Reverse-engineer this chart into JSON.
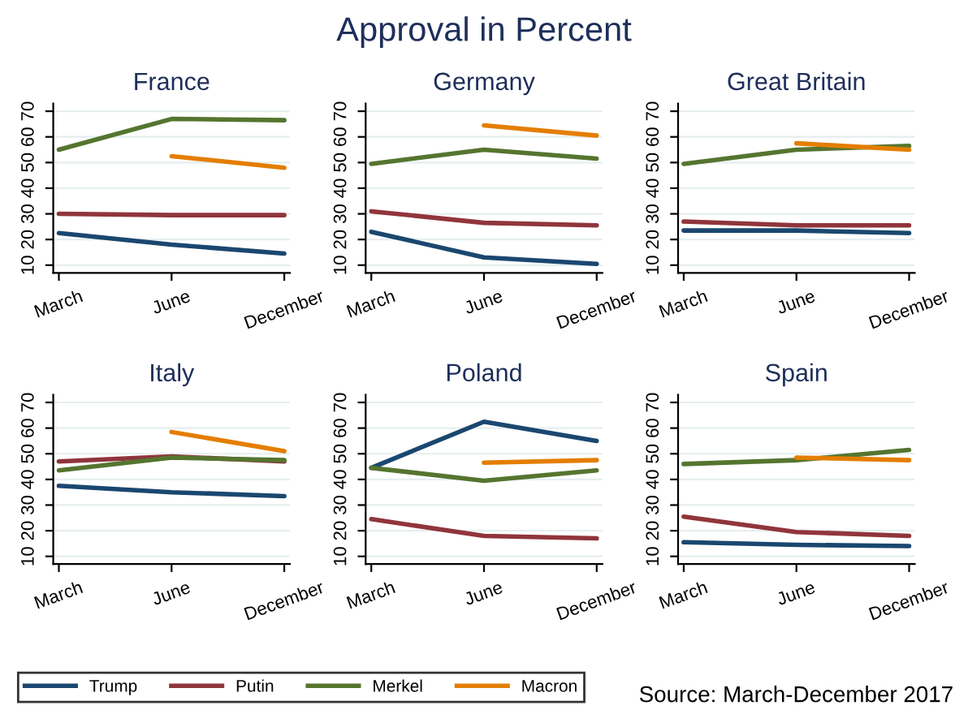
{
  "chart_data": [
    {
      "type": "line",
      "title": "France",
      "annotations": [
        "Approval in Percent"
      ],
      "categories": [
        "March",
        "June",
        "December"
      ],
      "ylim": [
        7,
        73
      ],
      "yticks": [
        10,
        20,
        30,
        40,
        50,
        60,
        70
      ],
      "grid": "y",
      "legend": "bottom",
      "series": [
        {
          "name": "Trump",
          "color": "#1a476f",
          "values": [
            22.5,
            18,
            14.5
          ]
        },
        {
          "name": "Putin",
          "color": "#90353b",
          "values": [
            30,
            29.5,
            29.5
          ]
        },
        {
          "name": "Merkel",
          "color": "#55752f",
          "values": [
            55,
            67,
            66.5
          ]
        },
        {
          "name": "Macron",
          "color": "#e37e00",
          "values": [
            null,
            52.5,
            48
          ]
        }
      ]
    },
    {
      "type": "line",
      "title": "Germany",
      "categories": [
        "March",
        "June",
        "December"
      ],
      "ylim": [
        7,
        73
      ],
      "yticks": [
        10,
        20,
        30,
        40,
        50,
        60,
        70
      ],
      "grid": "y",
      "series": [
        {
          "color": "#1a476f",
          "values": [
            23,
            13,
            10.5
          ]
        },
        {
          "color": "#90353b",
          "values": [
            31,
            26.5,
            25.5
          ]
        },
        {
          "color": "#55752f",
          "values": [
            49.5,
            55,
            51.5
          ]
        },
        {
          "color": "#e37e00",
          "values": [
            null,
            64.5,
            60.5
          ]
        }
      ]
    },
    {
      "type": "line",
      "title": "Great Britain",
      "categories": [
        "March",
        "June",
        "December"
      ],
      "ylim": [
        7,
        73
      ],
      "yticks": [
        10,
        20,
        30,
        40,
        50,
        60,
        70
      ],
      "grid": "y",
      "series": [
        {
          "color": "#1a476f",
          "values": [
            23.5,
            23.5,
            22.5
          ]
        },
        {
          "color": "#90353b",
          "values": [
            27,
            25.5,
            25.5
          ]
        },
        {
          "color": "#55752f",
          "values": [
            49.5,
            55,
            56.5
          ]
        },
        {
          "color": "#e37e00",
          "values": [
            null,
            57.5,
            55
          ]
        }
      ]
    },
    {
      "type": "line",
      "title": "Italy",
      "categories": [
        "March",
        "June",
        "December"
      ],
      "ylim": [
        7,
        73
      ],
      "yticks": [
        10,
        20,
        30,
        40,
        50,
        60,
        70
      ],
      "grid": "y",
      "series": [
        {
          "color": "#1a476f",
          "values": [
            37.5,
            35,
            33.5
          ]
        },
        {
          "color": "#90353b",
          "values": [
            47,
            49,
            47
          ]
        },
        {
          "color": "#55752f",
          "values": [
            43.5,
            48.5,
            47.5
          ]
        },
        {
          "color": "#e37e00",
          "values": [
            null,
            58.5,
            51
          ]
        }
      ]
    },
    {
      "type": "line",
      "title": "Poland",
      "categories": [
        "March",
        "June",
        "December"
      ],
      "ylim": [
        7,
        73
      ],
      "yticks": [
        10,
        20,
        30,
        40,
        50,
        60,
        70
      ],
      "grid": "y",
      "series": [
        {
          "color": "#1a476f",
          "values": [
            44.5,
            62.5,
            55
          ]
        },
        {
          "color": "#90353b",
          "values": [
            24.5,
            18,
            17
          ]
        },
        {
          "color": "#55752f",
          "values": [
            44.5,
            39.5,
            43.5
          ]
        },
        {
          "color": "#e37e00",
          "values": [
            null,
            46.5,
            47.5
          ]
        }
      ]
    },
    {
      "type": "line",
      "title": "Spain",
      "annotations": [
        "Source: March-December 2017"
      ],
      "categories": [
        "March",
        "June",
        "December"
      ],
      "ylim": [
        7,
        73
      ],
      "yticks": [
        10,
        20,
        30,
        40,
        50,
        60,
        70
      ],
      "grid": "y",
      "series": [
        {
          "color": "#1a476f",
          "values": [
            15.5,
            14.5,
            14
          ]
        },
        {
          "color": "#90353b",
          "values": [
            25.5,
            19.5,
            18
          ]
        },
        {
          "color": "#55752f",
          "values": [
            46,
            47.5,
            51.5
          ]
        },
        {
          "color": "#e37e00",
          "values": [
            null,
            48.5,
            47.5
          ]
        }
      ]
    }
  ]
}
